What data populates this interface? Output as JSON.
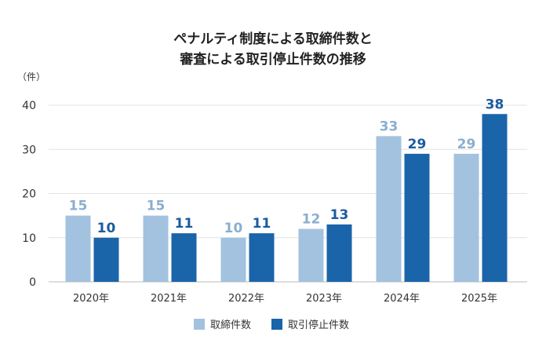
{
  "chart_data": {
    "type": "bar",
    "title": [
      "ペナルティ制度による取締件数と",
      "審査による取引停止件数の推移"
    ],
    "ylabel": "（件）",
    "xlabel": "",
    "categories": [
      "2020年",
      "2021年",
      "2022年",
      "2023年",
      "2024年",
      "2025年"
    ],
    "series": [
      {
        "name": "取締件数",
        "values": [
          15,
          15,
          10,
          12,
          33,
          29
        ],
        "color": "#a3c2df",
        "label_color": "#8aaed0"
      },
      {
        "name": "取引停止件数",
        "values": [
          10,
          11,
          11,
          13,
          29,
          38
        ],
        "color": "#1a64aa",
        "label_color": "#1a5c9e"
      }
    ],
    "ylim": [
      0,
      40
    ],
    "yticks": [
      0,
      10,
      20,
      30,
      40
    ],
    "grid": true,
    "legend_position": "bottom-center"
  }
}
